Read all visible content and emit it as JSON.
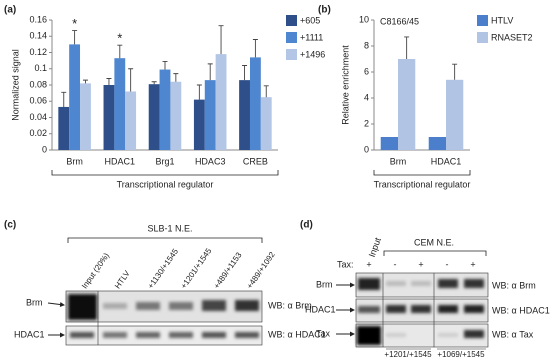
{
  "chart_data": [
    {
      "type": "bar",
      "panel_label": "(a)",
      "y_label": "Normalized signal",
      "x_label": "Transcriptional regulator",
      "categories": [
        "Brm",
        "HDAC1",
        "Brg1",
        "HDAC3",
        "CREB"
      ],
      "series": [
        {
          "name": "+605",
          "color": "#2e4f8a",
          "values": [
            0.053,
            0.08,
            0.081,
            0.062,
            0.086
          ],
          "errors": [
            0.018,
            0.008,
            0.003,
            0.018,
            0.018
          ]
        },
        {
          "name": "+1111",
          "color": "#4f86d0",
          "values": [
            0.13,
            0.113,
            0.099,
            0.086,
            0.114
          ],
          "errors": [
            0.017,
            0.016,
            0.01,
            0.02,
            0.022
          ]
        },
        {
          "name": "+1496",
          "color": "#b3c6e6",
          "values": [
            0.082,
            0.072,
            0.084,
            0.118,
            0.065
          ],
          "errors": [
            0.004,
            0.028,
            0.01,
            0.035,
            0.014
          ]
        }
      ],
      "asterisks": [
        "*",
        "*",
        null,
        null,
        null
      ],
      "ylim": [
        0,
        0.16
      ],
      "yticks": [
        0,
        0.02,
        0.04,
        0.06,
        0.08,
        0.1,
        0.12,
        0.14,
        0.16
      ],
      "grid": false,
      "legend": "right"
    },
    {
      "type": "bar",
      "panel_label": "(b)",
      "note": "C8166/45",
      "y_label": "Relative enrichment",
      "x_label": "Transcriptional regulator",
      "categories": [
        "Brm",
        "HDAC1"
      ],
      "series": [
        {
          "name": "HTLV",
          "color": "#4b7fcc",
          "values": [
            1,
            1
          ]
        },
        {
          "name": "RNASET2",
          "color": "#b2c4e4",
          "values": [
            7,
            5.4
          ],
          "errors": [
            1.7,
            1.2
          ]
        }
      ],
      "ylim": [
        0,
        10
      ],
      "yticks": [
        0,
        2,
        4,
        6,
        8,
        10
      ],
      "grid": false,
      "legend": "right"
    }
  ],
  "blot_c": {
    "panel_label": "(c)",
    "title": "SLB-1 N.E.",
    "lanes": [
      "Input (20%)",
      "HTLV",
      "+1130/+1545",
      "+1201/+1545",
      "+489/+1153",
      "+489/+1092"
    ],
    "rows": [
      {
        "name": "Brm",
        "antibody": "WB: α Brm"
      },
      {
        "name": "HDAC1",
        "antibody": "WB: α HDAC1"
      }
    ]
  },
  "blot_d": {
    "panel_label": "(d)",
    "input": "Input",
    "title": "CEM N.E.",
    "tax_label": "Tax:",
    "tax": [
      "+",
      "-",
      "+",
      "-",
      "+"
    ],
    "rows": [
      {
        "name": "Brm",
        "antibody": "WB: α Brm"
      },
      {
        "name": "HDAC1",
        "antibody": "WB: α HDAC1"
      },
      {
        "name": "Tax",
        "antibody": "WB: α Tax"
      }
    ],
    "probes": [
      "+1201/+1545",
      "+1069/+1545"
    ]
  }
}
